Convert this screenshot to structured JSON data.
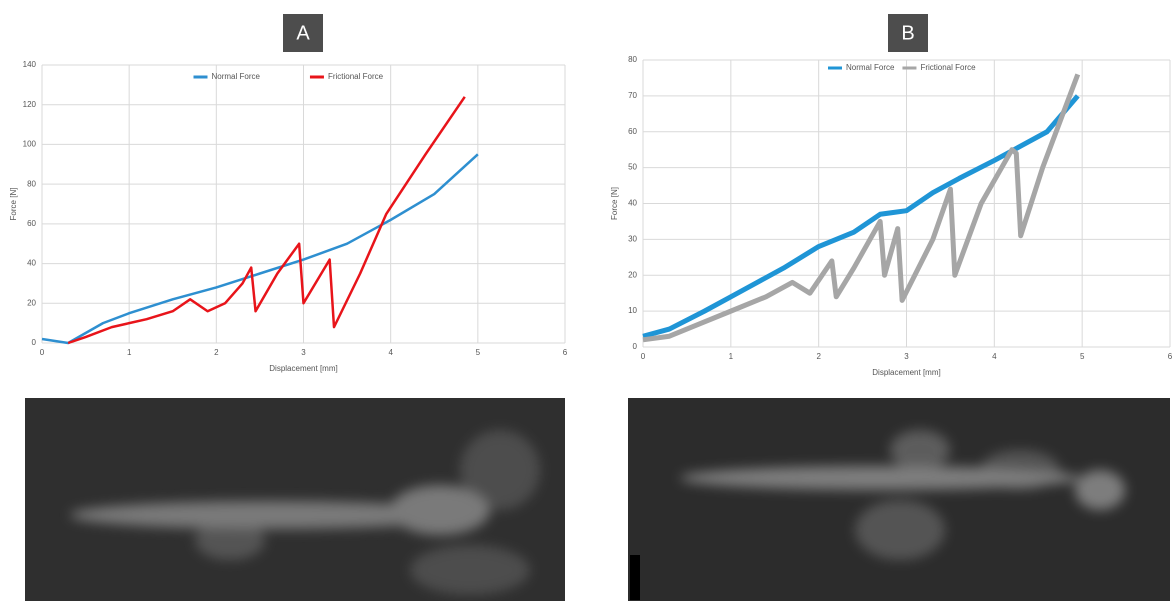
{
  "panel_labels": [
    "A",
    "B"
  ],
  "chart_data": [
    {
      "type": "line",
      "x_label": "Displacement [mm]",
      "y_label": "Force [N]",
      "xlim": [
        0,
        6
      ],
      "xticks": [
        0,
        1,
        2,
        3,
        4,
        5,
        6
      ],
      "ylim": [
        0,
        140
      ],
      "yticks": [
        0,
        20,
        40,
        60,
        80,
        100,
        120,
        140
      ],
      "grid": true,
      "legend": "top",
      "series": [
        {
          "name": "Normal Force",
          "color": "#2e8fd0",
          "x": [
            0,
            0.3,
            0.7,
            1,
            1.5,
            2,
            2.5,
            3,
            3.5,
            4,
            4.5,
            5
          ],
          "values": [
            2,
            0,
            10,
            15,
            22,
            28,
            35,
            42,
            50,
            62,
            75,
            95
          ]
        },
        {
          "name": "Frictional Force",
          "color": "#e8141a",
          "x": [
            0.3,
            0.5,
            0.8,
            1,
            1.2,
            1.5,
            1.7,
            1.9,
            2.1,
            2.3,
            2.4,
            2.45,
            2.7,
            2.95,
            3.0,
            3.3,
            3.35,
            3.65,
            3.95,
            4.4,
            4.85
          ],
          "values": [
            0,
            3,
            8,
            10,
            12,
            16,
            22,
            16,
            20,
            30,
            38,
            16,
            35,
            50,
            20,
            42,
            8,
            35,
            65,
            95,
            124
          ]
        }
      ]
    },
    {
      "type": "line",
      "x_label": "Displacement [mm]",
      "y_label": "Force [N]",
      "xlim": [
        0,
        6
      ],
      "xticks": [
        0,
        1,
        2,
        3,
        4,
        5,
        6
      ],
      "ylim": [
        0,
        80
      ],
      "yticks": [
        0,
        10,
        20,
        30,
        40,
        50,
        60,
        70,
        80
      ],
      "grid": true,
      "legend": "top-left",
      "series": [
        {
          "name": "Normal Force",
          "color": "#1f95d6",
          "x": [
            0,
            0.3,
            0.7,
            1,
            1.3,
            1.6,
            2,
            2.4,
            2.7,
            3,
            3.3,
            3.6,
            4,
            4.3,
            4.6,
            4.95
          ],
          "values": [
            3,
            5,
            10,
            14,
            18,
            22,
            28,
            32,
            37,
            38,
            43,
            47,
            52,
            56,
            60,
            70
          ]
        },
        {
          "name": "Frictional Force",
          "color": "#a6a6a6",
          "x": [
            0,
            0.3,
            0.6,
            1,
            1.4,
            1.7,
            1.9,
            2.15,
            2.2,
            2.4,
            2.7,
            2.75,
            2.9,
            2.95,
            3.3,
            3.5,
            3.55,
            3.85,
            4.2,
            4.25,
            4.3,
            4.55,
            4.95
          ],
          "values": [
            2,
            3,
            6,
            10,
            14,
            18,
            15,
            24,
            14,
            22,
            35,
            20,
            33,
            13,
            30,
            44,
            20,
            40,
            55,
            54,
            31,
            50,
            76
          ]
        }
      ]
    }
  ]
}
